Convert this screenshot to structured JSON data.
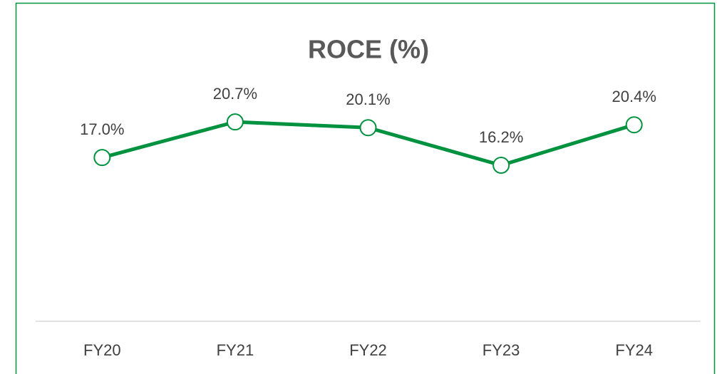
{
  "chart_data": {
    "type": "line",
    "title": "ROCE (%)",
    "categories": [
      "FY20",
      "FY21",
      "FY22",
      "FY23",
      "FY24"
    ],
    "series": [
      {
        "name": "ROCE",
        "color": "#00923f",
        "values": [
          17.0,
          20.7,
          20.1,
          16.2,
          20.4
        ],
        "value_labels": [
          "17.0%",
          "20.7%",
          "20.1%",
          "16.2%",
          "20.4%"
        ]
      }
    ],
    "ylim": [
      0,
      25
    ],
    "grid": false,
    "legend": false
  }
}
